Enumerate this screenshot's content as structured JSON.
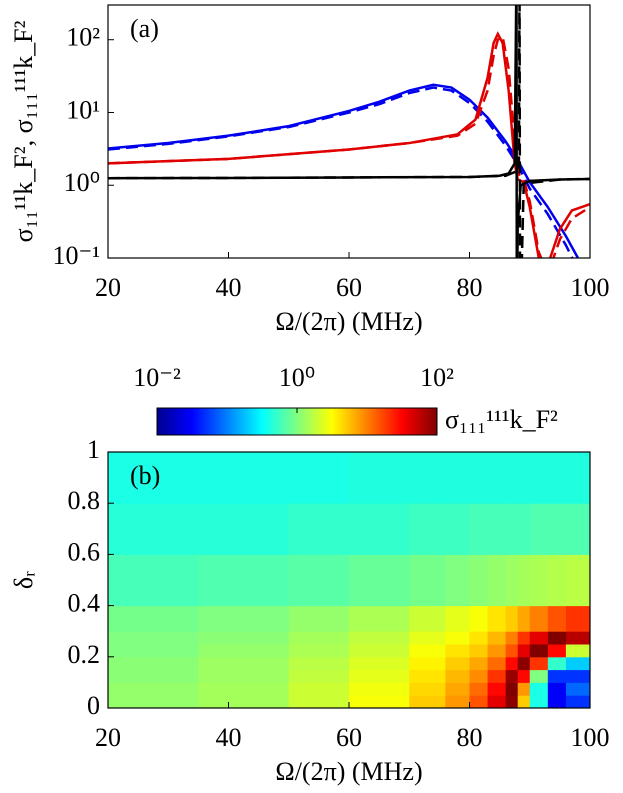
{
  "chart_data": [
    {
      "type": "line",
      "annotation": "(a)",
      "xlabel": "Ω/(2π) (MHz)",
      "ylabel": "σ₁₁¹¹k_F², σ₁₁₁¹¹¹k_F²",
      "xlim": [
        20,
        100
      ],
      "xticks": [
        20,
        40,
        60,
        80,
        100
      ],
      "ylim": [
        0.1,
        300
      ],
      "log_y": true,
      "yticks": [
        {
          "value": 0.1,
          "label": "10⁻¹"
        },
        {
          "value": 1,
          "label": "10⁰"
        },
        {
          "value": 10,
          "label": "10¹"
        },
        {
          "value": 100,
          "label": "10²"
        }
      ],
      "series": [
        {
          "color": "#0000ee",
          "style": "solid",
          "x": [
            20,
            30,
            40,
            50,
            60,
            65,
            70,
            74,
            77,
            80,
            83,
            86,
            88,
            90,
            93,
            96,
            98
          ],
          "values": [
            3.2,
            3.8,
            4.8,
            6.5,
            10.5,
            14,
            20,
            24,
            22,
            15,
            8.5,
            4,
            2.2,
            1.1,
            0.5,
            0.2,
            0.1
          ]
        },
        {
          "color": "#0000ee",
          "style": "dashed",
          "x": [
            20,
            30,
            40,
            50,
            60,
            65,
            70,
            74,
            77,
            80,
            83,
            86,
            88,
            90,
            93,
            96,
            98
          ],
          "values": [
            3.1,
            3.7,
            4.7,
            6.3,
            10,
            13,
            18.5,
            22,
            20,
            13.5,
            7.5,
            3.5,
            1.9,
            0.9,
            0.4,
            0.15,
            0.07
          ]
        },
        {
          "color": "#e00000",
          "style": "solid",
          "x": [
            20,
            40,
            60,
            70,
            78,
            81,
            83,
            84,
            84.7,
            85.5,
            86.5,
            87.5,
            88,
            88.5,
            89,
            90,
            91.5,
            93,
            95,
            97,
            100
          ],
          "values": [
            2,
            2.3,
            3.1,
            3.8,
            5,
            8,
            30,
            90,
            120,
            90,
            20,
            2,
            1.2,
            1.15,
            1.1,
            0.5,
            0.1,
            0.08,
            0.25,
            0.45,
            0.55
          ]
        },
        {
          "color": "#e00000",
          "style": "dashed",
          "x": [
            20,
            40,
            60,
            70,
            78,
            81,
            83,
            84,
            84.7,
            85.5,
            86.5,
            87.5,
            88,
            88.5,
            89,
            90,
            91.5,
            93,
            95,
            97,
            100
          ],
          "values": [
            2,
            2.3,
            3.1,
            3.8,
            4.8,
            7,
            20,
            60,
            100,
            110,
            40,
            4,
            1.5,
            1.3,
            1.2,
            0.6,
            0.12,
            0.06,
            0.18,
            0.35,
            0.5
          ]
        },
        {
          "color": "#000000",
          "style": "solid",
          "x": [
            20,
            40,
            60,
            80,
            85,
            86.5,
            87.5,
            87.8,
            87.85,
            88,
            88.5,
            90,
            95,
            100
          ],
          "values": [
            1.25,
            1.26,
            1.28,
            1.3,
            1.35,
            1.45,
            2,
            1000,
            0.01,
            0.3,
            1.0,
            1.15,
            1.2,
            1.22
          ]
        },
        {
          "color": "#000000",
          "style": "dashed",
          "x": [
            20,
            40,
            60,
            80,
            86,
            88.2,
            88.3,
            88.4,
            89,
            95,
            100
          ],
          "values": [
            1.25,
            1.26,
            1.28,
            1.3,
            1.35,
            1.6,
            1000,
            0.01,
            1.05,
            1.2,
            1.22
          ]
        }
      ]
    },
    {
      "type": "heatmap",
      "annotation": "(b)",
      "xlabel": "Ω/(2π) (MHz)",
      "ylabel": "δᵣ",
      "colorbar_label": "σ₁₁₁¹¹¹k_F²",
      "colormap": "jet",
      "clim": [
        0.01,
        100
      ],
      "log_color": true,
      "cticks": [
        {
          "value": 0.01,
          "label": "10⁻²"
        },
        {
          "value": 1,
          "label": "10⁰"
        },
        {
          "value": 100,
          "label": "10²"
        }
      ],
      "xlim": [
        20,
        100
      ],
      "xticks": [
        20,
        40,
        60,
        80,
        100
      ],
      "ylim": [
        0,
        1
      ],
      "yticks": [
        0,
        0.2,
        0.4,
        0.6,
        0.8,
        1
      ],
      "x_edges": [
        20,
        35,
        50,
        60,
        70,
        76,
        80,
        83,
        86,
        88,
        90,
        93,
        96,
        100
      ],
      "y_edges": [
        0,
        0.05,
        0.1,
        0.15,
        0.2,
        0.25,
        0.3,
        0.4,
        0.6,
        0.8,
        1
      ],
      "z": [
        [
          1.2,
          1.4,
          2,
          3,
          5,
          8,
          15,
          40,
          90,
          5,
          0.4,
          0.03,
          0.05
        ],
        [
          1.2,
          1.4,
          2,
          2.8,
          4.5,
          7,
          12,
          30,
          100,
          8,
          0.4,
          0.03,
          0.08
        ],
        [
          1.1,
          1.3,
          1.8,
          2.5,
          4,
          6,
          9,
          20,
          80,
          30,
          1,
          0.05,
          0.05
        ],
        [
          1.1,
          1.3,
          1.7,
          2.3,
          3.5,
          5,
          7,
          12,
          30,
          90,
          20,
          0.5,
          0.2
        ],
        [
          1,
          1.2,
          1.5,
          2,
          3,
          4,
          5,
          8,
          15,
          40,
          100,
          30,
          2
        ],
        [
          1,
          1.1,
          1.4,
          1.8,
          2.5,
          3,
          4,
          6,
          10,
          20,
          40,
          100,
          60
        ],
        [
          0.9,
          1,
          1.2,
          1.5,
          2,
          2.5,
          3,
          4,
          5,
          7,
          10,
          15,
          20
        ],
        [
          0.6,
          0.65,
          0.7,
          0.8,
          0.9,
          1,
          1.1,
          1.2,
          1.3,
          1.4,
          1.5,
          1.6,
          1.7
        ],
        [
          0.45,
          0.45,
          0.5,
          0.5,
          0.55,
          0.55,
          0.6,
          0.6,
          0.6,
          0.6,
          0.65,
          0.65,
          0.65
        ],
        [
          0.4,
          0.4,
          0.4,
          0.42,
          0.42,
          0.42,
          0.42,
          0.42,
          0.42,
          0.42,
          0.42,
          0.42,
          0.42
        ]
      ]
    }
  ]
}
